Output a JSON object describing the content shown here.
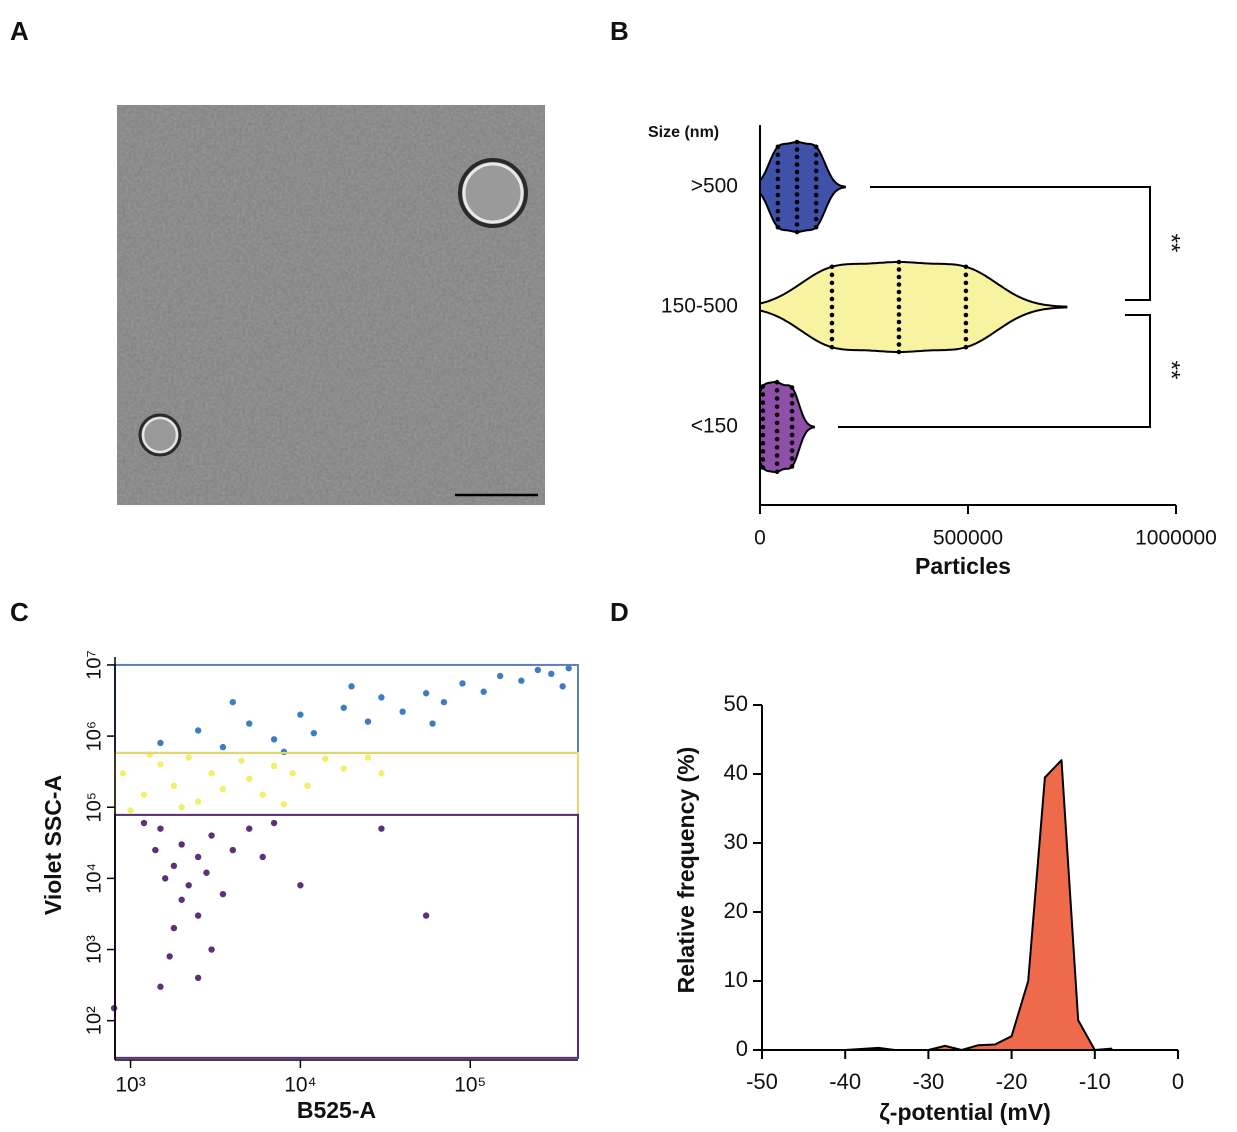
{
  "panel_labels": [
    "A",
    "B",
    "C",
    "D"
  ],
  "chart_data": [
    {
      "type": "violin",
      "orientation": "horizontal",
      "category_title": "Size (nm)",
      "xlabel": "Particles",
      "categories": [
        ">500",
        "150-500",
        "<150"
      ],
      "series": [
        {
          "color": "#3f51a8",
          "values": [
            43000,
            89000,
            135000
          ]
        },
        {
          "color": "#f7f3a0",
          "values": [
            173000,
            334000,
            495000
          ]
        },
        {
          "color": "#8e4fa8",
          "values": [
            7000,
            41000,
            77000
          ]
        }
      ],
      "xlim": [
        0,
        1000000
      ],
      "xticks": [
        0,
        500000,
        1000000
      ],
      "annotations": [
        "**",
        "**"
      ]
    },
    {
      "type": "scatter",
      "xlabel": "B525-A",
      "ylabel": "Violet SSC-A",
      "log_x": true,
      "log_y": true,
      "xlim": [
        810,
        431000
      ],
      "ylim": [
        28,
        11000000
      ],
      "xticks": [
        {
          "value": 1000,
          "label": "10³"
        },
        {
          "value": 10000,
          "label": "10⁴"
        },
        {
          "value": 100000,
          "label": "10⁵"
        }
      ],
      "yticks": [
        {
          "value": 100,
          "label": "10²"
        },
        {
          "value": 1000,
          "label": "10³"
        },
        {
          "value": 10000,
          "label": "10⁴"
        },
        {
          "value": 100000,
          "label": "10⁵"
        },
        {
          "value": 1000000,
          "label": "10⁶"
        },
        {
          "value": 10000000,
          "label": "10⁷"
        }
      ],
      "gates": [
        {
          "color": "#5b82b8",
          "ylim": [
            580000,
            10000000
          ]
        },
        {
          "color": "#e8d86a",
          "ylim": [
            78000,
            580000
          ]
        },
        {
          "color": "#5a2a7a",
          "ylim": [
            30,
            78000
          ]
        }
      ],
      "series": [
        {
          "color": "#2a6ebb",
          "x": [
            1500,
            2500,
            3500,
            5000,
            7000,
            10000,
            12000,
            18000,
            25000,
            30000,
            40000,
            55000,
            70000,
            90000,
            120000,
            150000,
            200000,
            250000,
            300000,
            380000,
            4000,
            20000,
            8000,
            60000,
            350000
          ],
          "values": [
            800000,
            1200000,
            700000,
            1500000,
            900000,
            2000000,
            1100000,
            2500000,
            1600000,
            3500000,
            2200000,
            4000000,
            3000000,
            5500000,
            4200000,
            7000000,
            6000000,
            8500000,
            7500000,
            9000000,
            3000000,
            5000000,
            600000,
            1500000,
            5000000
          ]
        },
        {
          "color": "#eeee5a",
          "x": [
            900,
            1200,
            1500,
            1800,
            2200,
            2500,
            3000,
            3500,
            4500,
            5000,
            6000,
            7000,
            9000,
            11000,
            14000,
            18000,
            25000,
            1000,
            2000,
            8000,
            30000,
            1300
          ],
          "values": [
            300000,
            150000,
            400000,
            200000,
            500000,
            120000,
            300000,
            180000,
            450000,
            250000,
            150000,
            380000,
            300000,
            200000,
            480000,
            350000,
            500000,
            90000,
            100000,
            110000,
            300000,
            550000
          ]
        },
        {
          "color": "#4b1a6b",
          "x": [
            1500,
            2000,
            2500,
            1800,
            3000,
            1600,
            2200,
            2800,
            4000,
            5000,
            1400,
            2000,
            2500,
            1800,
            3500,
            1200,
            6000,
            7000,
            1700,
            3000,
            2500,
            800,
            10000,
            30000,
            55000,
            1500
          ],
          "values": [
            50000,
            30000,
            20000,
            15000,
            40000,
            10000,
            8000,
            12000,
            25000,
            50000,
            25000,
            5000,
            3000,
            2000,
            6000,
            60000,
            20000,
            60000,
            800,
            1000,
            400,
            150,
            8000,
            50000,
            3000,
            300
          ]
        }
      ]
    },
    {
      "type": "area",
      "xlabel": "ζ-potential (mV)",
      "ylabel": "Relative frequency (%)",
      "color": "#ee6a4a",
      "x": [
        -50,
        -40,
        -36,
        -34,
        -30,
        -28,
        -26,
        -24,
        -22,
        -20,
        -18,
        -16,
        -14,
        -12,
        -10,
        -8
      ],
      "values": [
        0,
        0,
        0.3,
        0,
        0,
        0.6,
        0,
        0.7,
        0.8,
        2,
        10,
        39.5,
        42,
        4.3,
        0,
        0.2
      ],
      "xlim": [
        -50,
        0
      ],
      "xticks": [
        -50,
        -40,
        -30,
        -20,
        -10,
        0
      ],
      "ylim": [
        0,
        50
      ],
      "yticks": [
        0,
        10,
        20,
        30,
        40,
        50
      ]
    }
  ]
}
